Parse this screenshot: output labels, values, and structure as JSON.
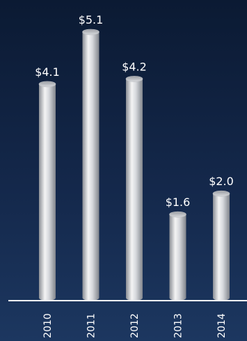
{
  "chart_data": {
    "type": "bar",
    "categories": [
      "2010",
      "2011",
      "2012",
      "2013",
      "2014"
    ],
    "values": [
      4.1,
      5.1,
      4.2,
      1.6,
      2.0
    ],
    "value_labels": [
      "$4.1",
      "$5.1",
      "$4.2",
      "$1.6",
      "$2.0"
    ],
    "title": "",
    "xlabel": "",
    "ylabel": "",
    "ylim": [
      0,
      5.1
    ],
    "grid": false,
    "legend": "none",
    "colors": {
      "bar_light": "#f2f2f2",
      "bar_mid": "#c9ccd1",
      "bar_dark": "#7a7e86",
      "baseline": "#ffffff",
      "text": "#ffffff"
    }
  }
}
